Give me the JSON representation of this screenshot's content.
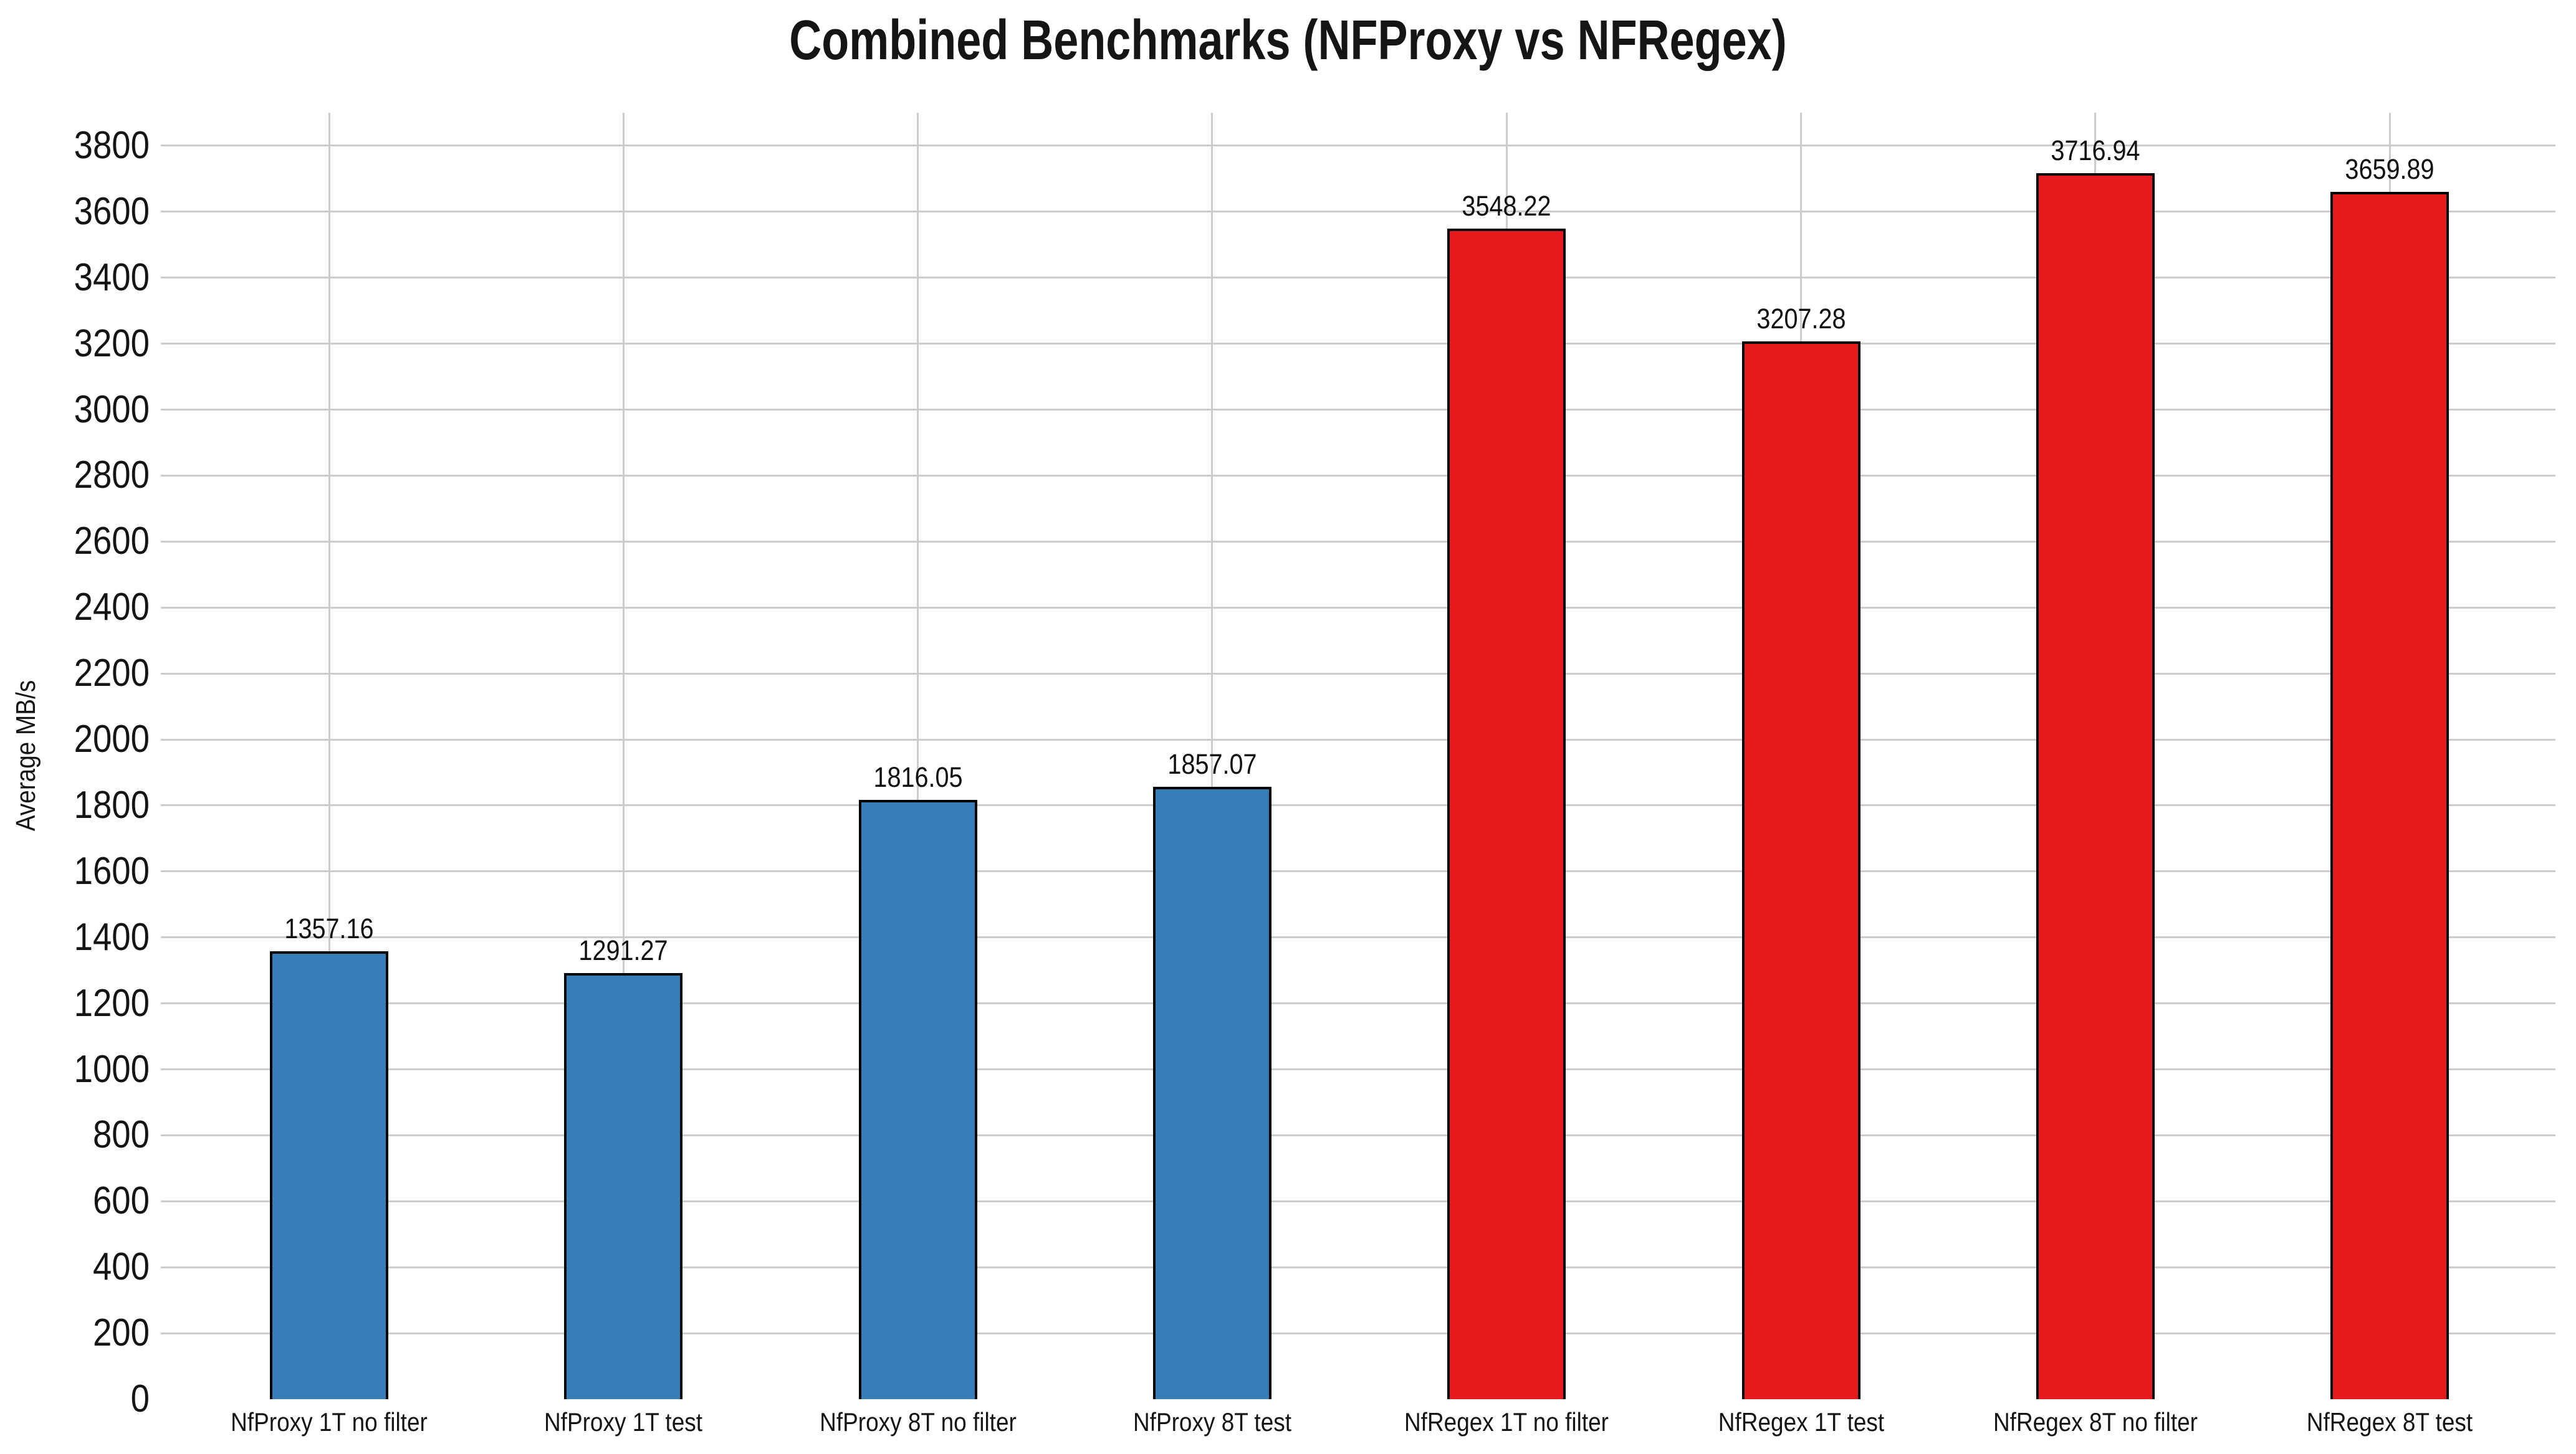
{
  "title": "Combined Benchmarks (NFProxy vs NFRegex)",
  "chart_data": {
    "type": "bar",
    "title": "Combined Benchmarks (NFProxy vs NFRegex)",
    "ylabel": "Average MB/s",
    "xlabel": "",
    "categories": [
      "NfProxy 1T no filter",
      "NfProxy 1T test",
      "NfProxy 8T no filter",
      "NfProxy 8T test",
      "NfRegex 1T no filter",
      "NfRegex 1T test",
      "NfRegex 8T no filter",
      "NfRegex 8T test"
    ],
    "values": [
      1357.16,
      1291.27,
      1816.05,
      1857.07,
      3548.22,
      3207.28,
      3716.94,
      3659.89
    ],
    "value_labels": [
      "1357.16",
      "1291.27",
      "1816.05",
      "1857.07",
      "3548.22",
      "3207.28",
      "3716.94",
      "3659.89"
    ],
    "series": [
      {
        "name": "NfProxy",
        "color": "#377eb8",
        "indices": [
          0,
          1,
          2,
          3
        ]
      },
      {
        "name": "NfRegex",
        "color": "#e41a1c",
        "indices": [
          4,
          5,
          6,
          7
        ]
      }
    ],
    "bar_colors": [
      "#377eb8",
      "#377eb8",
      "#377eb8",
      "#377eb8",
      "#e41a1c",
      "#e41a1c",
      "#e41a1c",
      "#e41a1c"
    ],
    "bar_edge_color": "#000000",
    "grid": true,
    "grid_color": "#cccccc",
    "legend_position": "none",
    "ylim": [
      0,
      3900
    ],
    "yticks": [
      0,
      200,
      400,
      600,
      800,
      1000,
      1200,
      1400,
      1600,
      1800,
      2000,
      2200,
      2400,
      2600,
      2800,
      3000,
      3200,
      3400,
      3600,
      3800
    ]
  }
}
